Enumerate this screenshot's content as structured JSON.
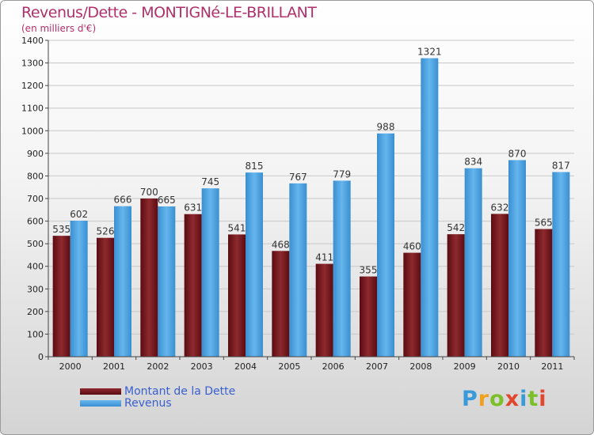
{
  "title": "Revenus/Dette - MONTIGNé-LE-BRILLANT",
  "subtitle": "(en milliers d'€)",
  "legend": {
    "debt": "Montant de la Dette",
    "revenue": "Revenus"
  },
  "logo": {
    "p": "P",
    "r": "r",
    "o": "o",
    "x": "x",
    "i": "i",
    "t": "t",
    "i2": "i"
  },
  "colors": {
    "debt": "#7a1a1f",
    "revenue": "#4ea6e4",
    "title": "#b0306a"
  },
  "chart_data": {
    "type": "bar",
    "title": "Revenus/Dette - MONTIGNé-LE-BRILLANT",
    "ylabel": "(en milliers d'€)",
    "categories": [
      "2000",
      "2001",
      "2002",
      "2003",
      "2004",
      "2005",
      "2006",
      "2007",
      "2008",
      "2009",
      "2010",
      "2011"
    ],
    "series": [
      {
        "name": "Montant de la Dette",
        "values": [
          535,
          526,
          700,
          631,
          541,
          468,
          411,
          355,
          460,
          542,
          632,
          565
        ]
      },
      {
        "name": "Revenus",
        "values": [
          602,
          666,
          665,
          745,
          815,
          767,
          779,
          988,
          1321,
          834,
          870,
          817
        ]
      }
    ],
    "ylim": [
      0,
      1400
    ],
    "yticks": [
      0,
      100,
      200,
      300,
      400,
      500,
      600,
      700,
      800,
      900,
      1000,
      1100,
      1200,
      1300,
      1400
    ],
    "grid": true
  }
}
